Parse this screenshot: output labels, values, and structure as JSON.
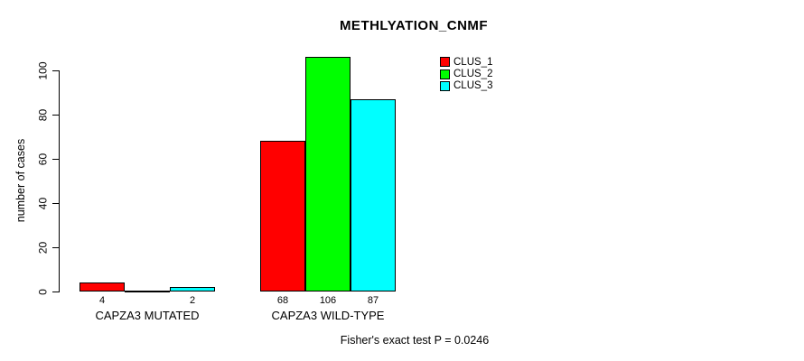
{
  "title": "METHLYATION_CNMF",
  "y_axis": {
    "label": "number of cases",
    "ticks": [
      0,
      20,
      40,
      60,
      80,
      100
    ]
  },
  "footer": "Fisher's exact test P = 0.0246",
  "legend": [
    {
      "label": "CLUS_1",
      "color": "#ff0000"
    },
    {
      "label": "CLUS_2",
      "color": "#00ff00"
    },
    {
      "label": "CLUS_3",
      "color": "#00ffff"
    }
  ],
  "chart_data": {
    "type": "bar",
    "title": "METHLYATION_CNMF",
    "ylabel": "number of cases",
    "ylim": [
      0,
      100
    ],
    "grid": false,
    "legend_position": "top-right",
    "categories": [
      "CAPZA3 MUTATED",
      "CAPZA3 WILD-TYPE"
    ],
    "series": [
      {
        "name": "CLUS_1",
        "color": "#ff0000",
        "values": [
          4,
          68
        ]
      },
      {
        "name": "CLUS_2",
        "color": "#00ff00",
        "values": [
          0,
          106
        ]
      },
      {
        "name": "CLUS_3",
        "color": "#00ffff",
        "values": [
          2,
          87
        ]
      }
    ],
    "bar_value_labels": [
      [
        "4",
        "",
        "2"
      ],
      [
        "68",
        "106",
        "87"
      ]
    ],
    "annotation": "Fisher's exact test P = 0.0246"
  }
}
